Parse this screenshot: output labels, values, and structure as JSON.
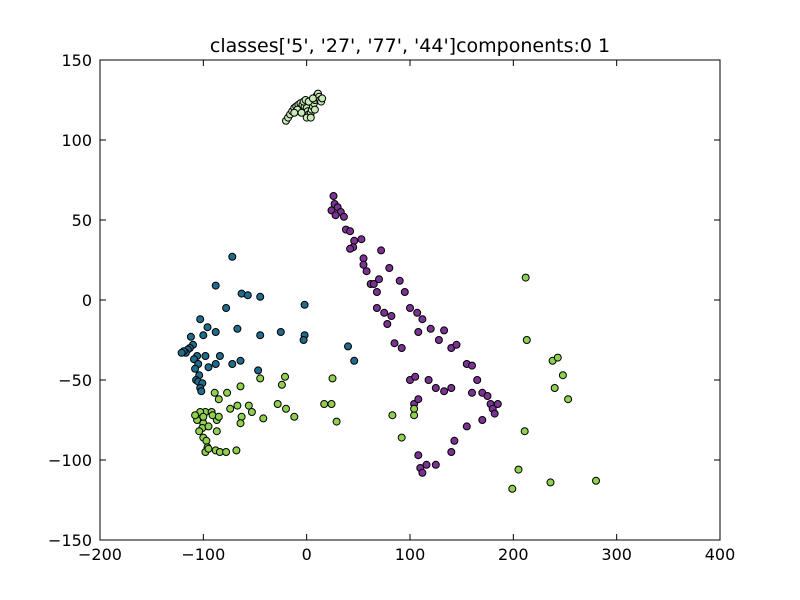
{
  "chart_data": {
    "type": "scatter",
    "title": "classes['5', '27', '77', '44']components:0 1",
    "xlabel": "",
    "ylabel": "",
    "xlim": [
      -200,
      400
    ],
    "ylim": [
      -150,
      150
    ],
    "xticks": [
      -200,
      -100,
      0,
      100,
      200,
      300,
      400
    ],
    "yticks": [
      -150,
      -100,
      -50,
      0,
      50,
      100,
      150
    ],
    "grid": false,
    "series": [
      {
        "color": "#c7e9b4",
        "points": [
          [
            -20,
            112
          ],
          [
            -18,
            114
          ],
          [
            -16,
            116
          ],
          [
            -14,
            118
          ],
          [
            -12,
            120
          ],
          [
            -10,
            121
          ],
          [
            -8,
            122
          ],
          [
            -6,
            123
          ],
          [
            -4,
            122
          ],
          [
            -2,
            121
          ],
          [
            0,
            120
          ],
          [
            1,
            118
          ],
          [
            2,
            116
          ],
          [
            3,
            115
          ],
          [
            4,
            117
          ],
          [
            5,
            119
          ],
          [
            6,
            121
          ],
          [
            7,
            123
          ],
          [
            8,
            125
          ],
          [
            9,
            127
          ],
          [
            10,
            128
          ],
          [
            11,
            129
          ],
          [
            12,
            127
          ],
          [
            13,
            125
          ],
          [
            14,
            124
          ],
          [
            15,
            126
          ],
          [
            -3,
            124
          ],
          [
            -1,
            125
          ],
          [
            2,
            124
          ],
          [
            6,
            126
          ],
          [
            -9,
            119
          ],
          [
            -5,
            117
          ],
          [
            0,
            114
          ],
          [
            4,
            114
          ],
          [
            -12,
            117
          ],
          [
            8,
            119
          ]
        ]
      },
      {
        "color": "#7b3294",
        "points": [
          [
            26,
            65
          ],
          [
            24,
            56
          ],
          [
            27,
            60
          ],
          [
            30,
            58
          ],
          [
            33,
            55
          ],
          [
            36,
            52
          ],
          [
            28,
            53
          ],
          [
            38,
            44
          ],
          [
            42,
            43
          ],
          [
            46,
            37
          ],
          [
            45,
            33
          ],
          [
            42,
            32
          ],
          [
            53,
            38
          ],
          [
            55,
            26
          ],
          [
            55,
            22
          ],
          [
            58,
            18
          ],
          [
            62,
            10
          ],
          [
            65,
            10
          ],
          [
            68,
            5
          ],
          [
            70,
            13
          ],
          [
            72,
            31
          ],
          [
            80,
            20
          ],
          [
            68,
            -5
          ],
          [
            75,
            -8
          ],
          [
            78,
            -15
          ],
          [
            82,
            -10
          ],
          [
            90,
            12
          ],
          [
            95,
            5
          ],
          [
            100,
            -5
          ],
          [
            107,
            -8
          ],
          [
            112,
            -12
          ],
          [
            108,
            -20
          ],
          [
            120,
            -18
          ],
          [
            128,
            -25
          ],
          [
            133,
            -19
          ],
          [
            140,
            -30
          ],
          [
            145,
            -28
          ],
          [
            85,
            -27
          ],
          [
            92,
            -30
          ],
          [
            100,
            -50
          ],
          [
            105,
            -48
          ],
          [
            118,
            -50
          ],
          [
            125,
            -55
          ],
          [
            133,
            -57
          ],
          [
            140,
            -55
          ],
          [
            155,
            -40
          ],
          [
            160,
            -41
          ],
          [
            165,
            -50
          ],
          [
            160,
            -58
          ],
          [
            170,
            -58
          ],
          [
            175,
            -60
          ],
          [
            178,
            -65
          ],
          [
            180,
            -68
          ],
          [
            185,
            -65
          ],
          [
            182,
            -71
          ],
          [
            170,
            -75
          ],
          [
            155,
            -79
          ],
          [
            143,
            -88
          ],
          [
            140,
            -95
          ],
          [
            108,
            -97
          ],
          [
            110,
            -105
          ],
          [
            112,
            -108
          ],
          [
            116,
            -103
          ],
          [
            125,
            -103
          ],
          [
            104,
            -65
          ],
          [
            108,
            -62
          ]
        ]
      },
      {
        "color": "#1f6c8c",
        "points": [
          [
            -72,
            27
          ],
          [
            -88,
            9
          ],
          [
            -63,
            4
          ],
          [
            -57,
            3
          ],
          [
            -45,
            2
          ],
          [
            -78,
            -5
          ],
          [
            -2,
            -3
          ],
          [
            -103,
            -12
          ],
          [
            -96,
            -17
          ],
          [
            -88,
            -20
          ],
          [
            -100,
            -22
          ],
          [
            -112,
            -23
          ],
          [
            -67,
            -18
          ],
          [
            -45,
            -22
          ],
          [
            -25,
            -20
          ],
          [
            -2,
            -22
          ],
          [
            -3,
            -25
          ],
          [
            -110,
            -28
          ],
          [
            -113,
            -30
          ],
          [
            -115,
            -31
          ],
          [
            -117,
            -33
          ],
          [
            -119,
            -32
          ],
          [
            -121,
            -33
          ],
          [
            -106,
            -35
          ],
          [
            -98,
            -35
          ],
          [
            -109,
            -37
          ],
          [
            -105,
            -40
          ],
          [
            -84,
            -35
          ],
          [
            -88,
            -40
          ],
          [
            -72,
            -40
          ],
          [
            -47,
            -44
          ],
          [
            40,
            -29
          ],
          [
            46,
            -38
          ],
          [
            -108,
            -43
          ],
          [
            -104,
            -47
          ],
          [
            -107,
            -50
          ],
          [
            -105,
            -51
          ],
          [
            -101,
            -52
          ],
          [
            -103,
            -55
          ],
          [
            -102,
            -57
          ],
          [
            -64,
            -38
          ],
          [
            -95,
            -42
          ]
        ]
      },
      {
        "color": "#8fd14f",
        "points": [
          [
            212,
            14
          ],
          [
            213,
            -25
          ],
          [
            238,
            -38
          ],
          [
            243,
            -36
          ],
          [
            248,
            -47
          ],
          [
            253,
            -62
          ],
          [
            240,
            -55
          ],
          [
            280,
            -113
          ],
          [
            236,
            -114
          ],
          [
            199,
            -118
          ],
          [
            205,
            -106
          ],
          [
            211,
            -82
          ],
          [
            -21,
            -48
          ],
          [
            -24,
            -53
          ],
          [
            -45,
            -49
          ],
          [
            -64,
            -54
          ],
          [
            -77,
            -58
          ],
          [
            -89,
            -58
          ],
          [
            -85,
            -62
          ],
          [
            -56,
            -66
          ],
          [
            -20,
            -68
          ],
          [
            -28,
            -65
          ],
          [
            -12,
            -73
          ],
          [
            17,
            -65
          ],
          [
            24,
            -65
          ],
          [
            25,
            -49
          ],
          [
            29,
            -76
          ],
          [
            -53,
            -70
          ],
          [
            -67,
            -66
          ],
          [
            -63,
            -73
          ],
          [
            -74,
            -68
          ],
          [
            -98,
            -70
          ],
          [
            -92,
            -70
          ],
          [
            -103,
            -70
          ],
          [
            -106,
            -75
          ],
          [
            -108,
            -72
          ],
          [
            -100,
            -77
          ],
          [
            -101,
            -80
          ],
          [
            -104,
            -82
          ],
          [
            -100,
            -86
          ],
          [
            -100,
            -73
          ],
          [
            -97,
            -88
          ],
          [
            -96,
            -92
          ],
          [
            -98,
            -95
          ],
          [
            -95,
            -93
          ],
          [
            -88,
            -94
          ],
          [
            -84,
            -95
          ],
          [
            -78,
            -95
          ],
          [
            -68,
            -94
          ],
          [
            -64,
            -77
          ],
          [
            -87,
            -75
          ],
          [
            -87,
            -82
          ],
          [
            -42,
            -74
          ],
          [
            -91,
            -72
          ],
          [
            83,
            -72
          ],
          [
            104,
            -72
          ],
          [
            104,
            -68
          ],
          [
            92,
            -86
          ],
          [
            -95,
            -79
          ],
          [
            -85,
            -73
          ]
        ]
      }
    ]
  }
}
